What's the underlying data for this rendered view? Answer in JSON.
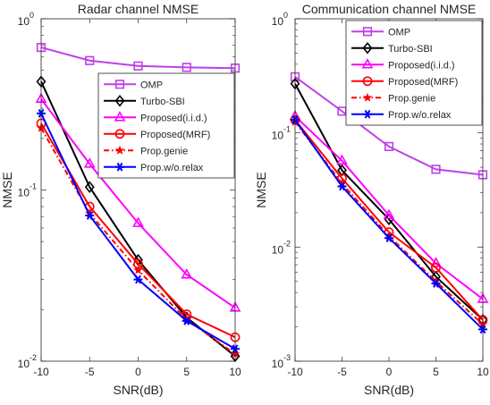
{
  "chart_data": [
    {
      "type": "line",
      "title": "Radar channel NMSE",
      "xlabel": "SNR(dB)",
      "ylabel": "NMSE",
      "yscale": "log",
      "xlim": [
        -10,
        10
      ],
      "ylim": [
        0.01,
        1
      ],
      "x": [
        -10,
        -5,
        0,
        5,
        10
      ],
      "x_ticks": [
        "-10",
        "-5",
        "0",
        "5",
        "10"
      ],
      "y_ticks": [
        {
          "value": 0.01,
          "base": "10",
          "exp": "-2"
        },
        {
          "value": 0.1,
          "base": "10",
          "exp": "-1"
        },
        {
          "value": 1,
          "base": "10",
          "exp": "0"
        }
      ],
      "legend_position": "center-right",
      "series": [
        {
          "name": "OMP",
          "color": "#bf40e6",
          "marker": "square",
          "dash": "solid",
          "values": [
            0.68,
            0.57,
            0.53,
            0.52,
            0.515
          ]
        },
        {
          "name": "Turbo-SBI",
          "color": "#000000",
          "marker": "diamond",
          "dash": "solid",
          "values": [
            0.43,
            0.104,
            0.039,
            0.018,
            0.0107
          ]
        },
        {
          "name": "Proposed(i.i.d.)",
          "color": "#ff00ff",
          "marker": "triangle",
          "dash": "solid",
          "values": [
            0.34,
            0.142,
            0.064,
            0.032,
            0.0205
          ]
        },
        {
          "name": "Proposed(MRF)",
          "color": "#ff0000",
          "marker": "circle",
          "dash": "solid",
          "values": [
            0.245,
            0.08,
            0.037,
            0.0188,
            0.0138
          ]
        },
        {
          "name": "Prop.genie",
          "color": "#ff0000",
          "marker": "star",
          "dash": "dashdot",
          "values": [
            0.23,
            0.073,
            0.034,
            0.0175,
            0.011
          ]
        },
        {
          "name": "Prop.w/o.relax",
          "color": "#0000ff",
          "marker": "asterisk",
          "dash": "solid",
          "values": [
            0.28,
            0.071,
            0.03,
            0.0172,
            0.0118
          ]
        }
      ]
    },
    {
      "type": "line",
      "title": "Communication channel NMSE",
      "xlabel": "SNR(dB)",
      "ylabel": "NMSE",
      "yscale": "log",
      "xlim": [
        -10,
        10
      ],
      "ylim": [
        0.001,
        1
      ],
      "x": [
        -10,
        -5,
        0,
        5,
        10
      ],
      "x_ticks": [
        "-10",
        "-5",
        "0",
        "5",
        "10"
      ],
      "y_ticks": [
        {
          "value": 0.001,
          "base": "10",
          "exp": "-3"
        },
        {
          "value": 0.01,
          "base": "10",
          "exp": "-2"
        },
        {
          "value": 0.1,
          "base": "10",
          "exp": "-1"
        },
        {
          "value": 1,
          "base": "10",
          "exp": "0"
        }
      ],
      "legend_position": "top-right",
      "series": [
        {
          "name": "OMP",
          "color": "#bf40e6",
          "marker": "square",
          "dash": "solid",
          "values": [
            0.31,
            0.155,
            0.076,
            0.048,
            0.043
          ]
        },
        {
          "name": "Turbo-SBI",
          "color": "#000000",
          "marker": "diamond",
          "dash": "solid",
          "values": [
            0.27,
            0.047,
            0.0175,
            0.0055,
            0.0023
          ]
        },
        {
          "name": "Proposed(i.i.d.)",
          "color": "#ff00ff",
          "marker": "triangle",
          "dash": "solid",
          "values": [
            0.14,
            0.057,
            0.019,
            0.0072,
            0.0035
          ]
        },
        {
          "name": "Proposed(MRF)",
          "color": "#ff0000",
          "marker": "circle",
          "dash": "solid",
          "values": [
            0.13,
            0.04,
            0.0135,
            0.0066,
            0.0023
          ]
        },
        {
          "name": "Prop.genie",
          "color": "#ff0000",
          "marker": "star",
          "dash": "dashdot",
          "values": [
            0.125,
            0.036,
            0.0125,
            0.005,
            0.0021
          ]
        },
        {
          "name": "Prop.w/o.relax",
          "color": "#0000ff",
          "marker": "asterisk",
          "dash": "solid",
          "values": [
            0.13,
            0.034,
            0.012,
            0.0048,
            0.0019
          ]
        }
      ]
    }
  ]
}
